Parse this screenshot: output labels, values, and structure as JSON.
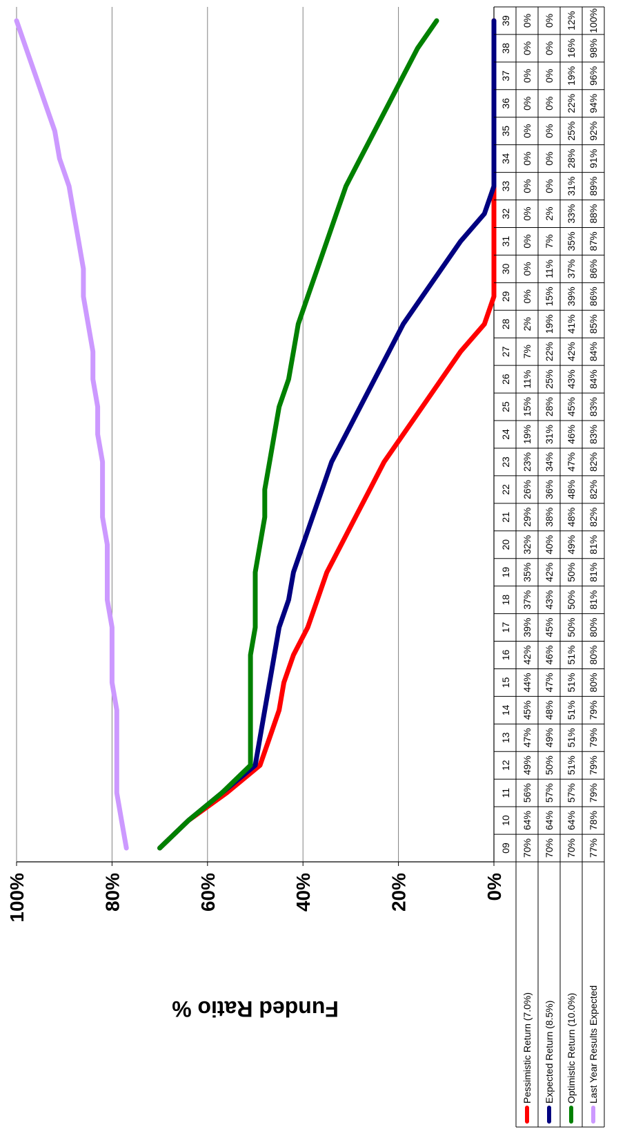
{
  "chart_data": {
    "type": "line",
    "ylabel": "Funded Ratio %",
    "ylim": [
      0,
      100
    ],
    "yticks": [
      "0%",
      "20%",
      "40%",
      "60%",
      "80%",
      "100%"
    ],
    "categories": [
      "09",
      "10",
      "11",
      "12",
      "13",
      "14",
      "15",
      "16",
      "17",
      "18",
      "19",
      "20",
      "21",
      "22",
      "23",
      "24",
      "25",
      "26",
      "27",
      "28",
      "29",
      "30",
      "31",
      "32",
      "33",
      "34",
      "35",
      "36",
      "37",
      "38",
      "39"
    ],
    "grid": true,
    "legend": "data-table",
    "orientation": "rotated-90",
    "series": [
      {
        "name": "Pessimistic Return (7.0%)",
        "color": "#ff0000",
        "values": [
          70,
          64,
          56,
          49,
          47,
          45,
          44,
          42,
          39,
          37,
          35,
          32,
          29,
          26,
          23,
          19,
          15,
          11,
          7,
          2,
          0,
          0,
          0,
          0,
          0,
          0,
          0,
          0,
          0,
          0,
          0
        ],
        "labels": [
          "70%",
          "64%",
          "56%",
          "49%",
          "47%",
          "45%",
          "44%",
          "42%",
          "39%",
          "37%",
          "35%",
          "32%",
          "29%",
          "26%",
          "23%",
          "19%",
          "15%",
          "11%",
          "7%",
          "2%",
          "0%",
          "0%",
          "0%",
          "0%",
          "0%",
          "0%",
          "0%",
          "0%",
          "0%",
          "0%",
          "0%"
        ]
      },
      {
        "name": "Expected Return (8.5%)",
        "color": "#000080",
        "values": [
          70,
          64,
          57,
          50,
          49,
          48,
          47,
          46,
          45,
          43,
          42,
          40,
          38,
          36,
          34,
          31,
          28,
          25,
          22,
          19,
          15,
          11,
          7,
          2,
          0,
          0,
          0,
          0,
          0,
          0,
          0
        ],
        "labels": [
          "70%",
          "64%",
          "57%",
          "50%",
          "49%",
          "48%",
          "47%",
          "46%",
          "45%",
          "43%",
          "42%",
          "40%",
          "38%",
          "36%",
          "34%",
          "31%",
          "28%",
          "25%",
          "22%",
          "19%",
          "15%",
          "11%",
          "7%",
          "2%",
          "0%",
          "0%",
          "0%",
          "0%",
          "0%",
          "0%",
          "0%"
        ]
      },
      {
        "name": "Optimistic Return (10.0%)",
        "color": "#008000",
        "values": [
          70,
          64,
          57,
          51,
          51,
          51,
          51,
          51,
          50,
          50,
          50,
          49,
          48,
          48,
          47,
          46,
          45,
          43,
          42,
          41,
          39,
          37,
          35,
          33,
          31,
          28,
          25,
          22,
          19,
          16,
          12
        ],
        "labels": [
          "70%",
          "64%",
          "57%",
          "51%",
          "51%",
          "51%",
          "51%",
          "51%",
          "50%",
          "50%",
          "50%",
          "49%",
          "48%",
          "48%",
          "47%",
          "46%",
          "45%",
          "43%",
          "42%",
          "41%",
          "39%",
          "37%",
          "35%",
          "33%",
          "31%",
          "28%",
          "25%",
          "22%",
          "19%",
          "16%",
          "12%"
        ]
      },
      {
        "name": "Last Year Results Expected",
        "color": "#cc99ff",
        "values": [
          77,
          78,
          79,
          79,
          79,
          79,
          80,
          80,
          80,
          81,
          81,
          81,
          82,
          82,
          82,
          83,
          83,
          84,
          84,
          85,
          86,
          86,
          87,
          88,
          89,
          91,
          92,
          94,
          96,
          98,
          100
        ],
        "labels": [
          "77%",
          "78%",
          "79%",
          "79%",
          "79%",
          "79%",
          "80%",
          "80%",
          "80%",
          "81%",
          "81%",
          "81%",
          "82%",
          "82%",
          "82%",
          "83%",
          "83%",
          "84%",
          "84%",
          "85%",
          "86%",
          "86%",
          "87%",
          "88%",
          "89%",
          "91%",
          "92%",
          "94%",
          "96%",
          "98%",
          "100%"
        ]
      }
    ]
  }
}
